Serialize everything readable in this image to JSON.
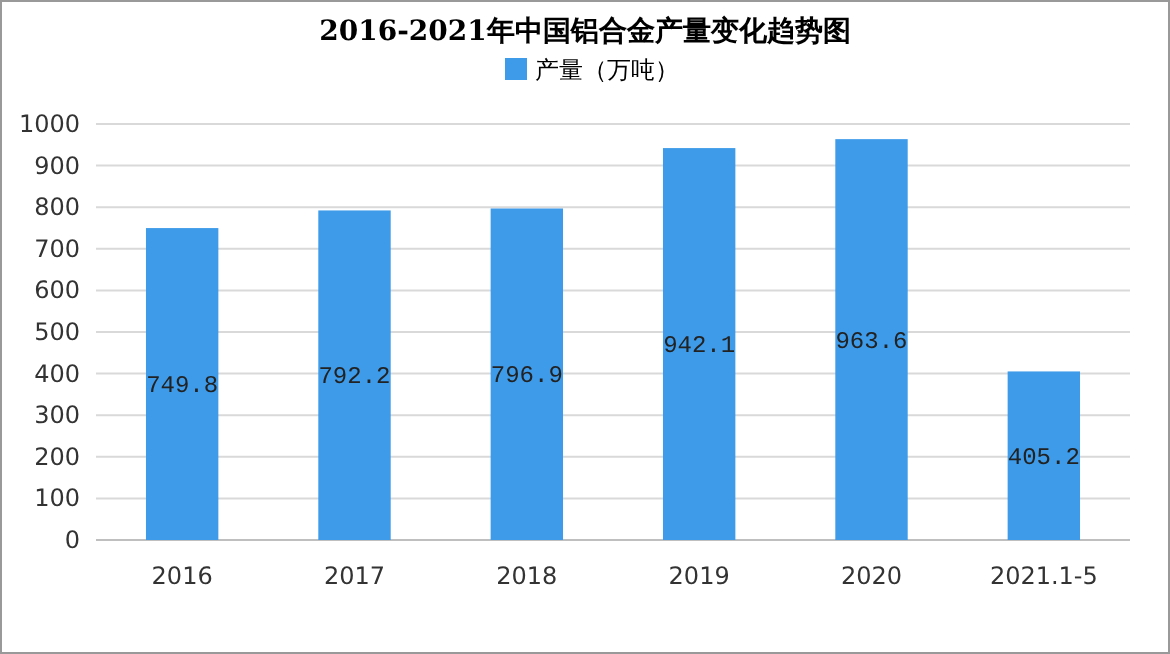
{
  "chart_data": {
    "type": "bar",
    "title": "2016-2021年中国铝合金产量变化趋势图",
    "categories": [
      "2016",
      "2017",
      "2018",
      "2019",
      "2020",
      "2021.1-5"
    ],
    "series": [
      {
        "name": "产量（万吨）",
        "color": "#3d9be9",
        "values": [
          749.8,
          792.2,
          796.9,
          942.1,
          963.6,
          405.2
        ]
      }
    ],
    "ylim": [
      0,
      1000
    ],
    "yticks": [
      0,
      100,
      200,
      300,
      400,
      500,
      600,
      700,
      800,
      900,
      1000
    ],
    "grid": "y",
    "legend": "top",
    "data_labels": true
  }
}
